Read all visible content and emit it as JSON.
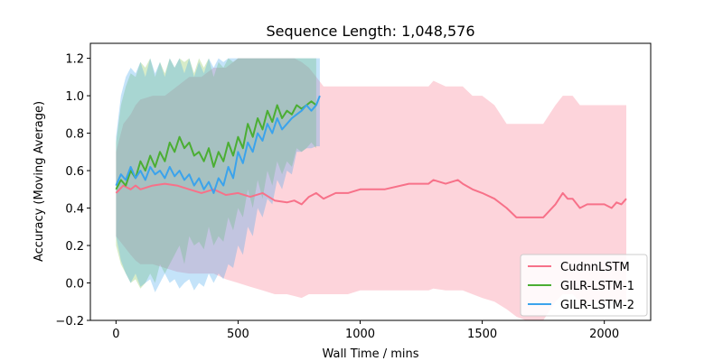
{
  "chart_data": {
    "type": "line",
    "title": "Sequence Length: 1,048,576",
    "xlabel": "Wall Time / mins",
    "ylabel": "Accuracy (Moving Average)",
    "xlim": [
      -105,
      2190
    ],
    "ylim": [
      -0.2,
      1.28
    ],
    "xticks": [
      0,
      500,
      1000,
      1500,
      2000
    ],
    "yticks": [
      -0.2,
      0.0,
      0.2,
      0.4,
      0.6,
      0.8,
      1.0,
      1.2
    ],
    "ytick_labels": [
      "−0.2",
      "0.0",
      "0.2",
      "0.4",
      "0.6",
      "0.8",
      "1.0",
      "1.2"
    ],
    "grid": false,
    "legend_position": "lower-right",
    "series": [
      {
        "name": "CudnnLSTM",
        "color": "#f77189",
        "band_color": "#f77189",
        "x": [
          0,
          30,
          60,
          80,
          100,
          150,
          200,
          250,
          300,
          350,
          400,
          450,
          500,
          550,
          600,
          650,
          700,
          730,
          760,
          790,
          820,
          850,
          900,
          950,
          1000,
          1100,
          1200,
          1280,
          1300,
          1350,
          1400,
          1420,
          1460,
          1500,
          1550,
          1600,
          1640,
          1680,
          1700,
          1750,
          1800,
          1830,
          1850,
          1870,
          1900,
          1930,
          1950,
          2000,
          2030,
          2050,
          2070,
          2090
        ],
        "y": [
          0.48,
          0.52,
          0.5,
          0.52,
          0.5,
          0.52,
          0.53,
          0.52,
          0.5,
          0.48,
          0.5,
          0.47,
          0.48,
          0.46,
          0.48,
          0.44,
          0.43,
          0.44,
          0.42,
          0.46,
          0.48,
          0.45,
          0.48,
          0.48,
          0.5,
          0.5,
          0.53,
          0.53,
          0.55,
          0.53,
          0.55,
          0.53,
          0.5,
          0.48,
          0.45,
          0.4,
          0.35,
          0.35,
          0.35,
          0.35,
          0.42,
          0.48,
          0.45,
          0.45,
          0.4,
          0.42,
          0.42,
          0.42,
          0.4,
          0.43,
          0.42,
          0.45
        ],
        "upper": [
          0.7,
          0.85,
          0.9,
          0.95,
          0.98,
          1.0,
          1.0,
          1.05,
          1.1,
          1.1,
          1.15,
          1.15,
          1.2,
          1.2,
          1.2,
          1.2,
          1.2,
          1.2,
          1.18,
          1.15,
          1.1,
          1.05,
          1.05,
          1.05,
          1.05,
          1.05,
          1.05,
          1.05,
          1.08,
          1.05,
          1.05,
          1.05,
          1.0,
          1.0,
          0.95,
          0.85,
          0.85,
          0.85,
          0.85,
          0.85,
          0.95,
          1.0,
          1.0,
          1.0,
          0.95,
          0.95,
          0.95,
          0.95,
          0.95,
          0.95,
          0.95,
          0.95
        ],
        "lower": [
          0.25,
          0.2,
          0.15,
          0.12,
          0.1,
          0.1,
          0.08,
          0.06,
          0.05,
          0.05,
          0.05,
          0.02,
          0.0,
          -0.02,
          -0.04,
          -0.06,
          -0.06,
          -0.07,
          -0.08,
          -0.06,
          -0.06,
          -0.06,
          -0.06,
          -0.06,
          -0.04,
          -0.04,
          -0.04,
          -0.04,
          -0.03,
          -0.04,
          -0.04,
          -0.04,
          -0.06,
          -0.08,
          -0.1,
          -0.14,
          -0.18,
          -0.2,
          -0.2,
          -0.2,
          -0.1,
          -0.06,
          -0.06,
          -0.06,
          -0.1,
          -0.1,
          -0.1,
          -0.1,
          -0.1,
          -0.1,
          -0.1,
          -0.1
        ]
      },
      {
        "name": "GILR-LSTM-1",
        "color": "#4bae33",
        "band_color": "#7bbf4a",
        "x": [
          0,
          20,
          40,
          60,
          80,
          100,
          120,
          140,
          160,
          180,
          200,
          220,
          240,
          260,
          280,
          300,
          320,
          340,
          360,
          380,
          400,
          420,
          440,
          460,
          480,
          500,
          520,
          540,
          560,
          580,
          600,
          620,
          640,
          660,
          680,
          700,
          720,
          740,
          760,
          780,
          800,
          820
        ],
        "y": [
          0.5,
          0.55,
          0.52,
          0.6,
          0.56,
          0.65,
          0.6,
          0.68,
          0.62,
          0.7,
          0.65,
          0.75,
          0.7,
          0.78,
          0.72,
          0.75,
          0.68,
          0.7,
          0.65,
          0.72,
          0.62,
          0.7,
          0.65,
          0.75,
          0.68,
          0.78,
          0.72,
          0.85,
          0.78,
          0.88,
          0.82,
          0.92,
          0.86,
          0.95,
          0.88,
          0.92,
          0.9,
          0.95,
          0.93,
          0.95,
          0.97,
          0.95
        ],
        "upper": [
          0.75,
          0.95,
          1.05,
          1.12,
          1.1,
          1.18,
          1.15,
          1.2,
          1.1,
          1.18,
          1.12,
          1.2,
          1.15,
          1.2,
          1.18,
          1.2,
          1.12,
          1.2,
          1.15,
          1.2,
          1.1,
          1.18,
          1.15,
          1.2,
          1.18,
          1.2,
          1.2,
          1.2,
          1.2,
          1.2,
          1.2,
          1.2,
          1.2,
          1.2,
          1.2,
          1.2,
          1.2,
          1.2,
          1.2,
          1.2,
          1.2,
          1.2
        ],
        "lower": [
          0.2,
          0.1,
          0.05,
          0.0,
          0.02,
          -0.03,
          0.0,
          0.05,
          0.0,
          0.1,
          0.05,
          0.1,
          0.15,
          0.2,
          0.1,
          0.25,
          0.2,
          0.22,
          0.18,
          0.3,
          0.2,
          0.25,
          0.22,
          0.35,
          0.28,
          0.4,
          0.35,
          0.5,
          0.4,
          0.55,
          0.45,
          0.6,
          0.52,
          0.65,
          0.58,
          0.65,
          0.62,
          0.72,
          0.7,
          0.72,
          0.75,
          0.72
        ]
      },
      {
        "name": "GILR-LSTM-2",
        "color": "#3ba3ec",
        "band_color": "#3ba3ec",
        "x": [
          0,
          20,
          40,
          60,
          80,
          100,
          120,
          140,
          160,
          180,
          200,
          220,
          240,
          260,
          280,
          300,
          320,
          340,
          360,
          380,
          400,
          420,
          440,
          460,
          480,
          500,
          520,
          540,
          560,
          580,
          600,
          620,
          640,
          660,
          680,
          700,
          720,
          740,
          760,
          780,
          800,
          820,
          835
        ],
        "y": [
          0.52,
          0.58,
          0.55,
          0.62,
          0.56,
          0.6,
          0.55,
          0.62,
          0.58,
          0.6,
          0.56,
          0.62,
          0.57,
          0.6,
          0.55,
          0.58,
          0.52,
          0.56,
          0.5,
          0.54,
          0.48,
          0.56,
          0.52,
          0.62,
          0.56,
          0.7,
          0.64,
          0.75,
          0.7,
          0.8,
          0.76,
          0.85,
          0.8,
          0.88,
          0.82,
          0.85,
          0.88,
          0.9,
          0.92,
          0.95,
          0.92,
          0.95,
          1.0
        ],
        "upper": [
          0.78,
          1.0,
          1.1,
          1.15,
          1.12,
          1.18,
          1.1,
          1.2,
          1.12,
          1.18,
          1.1,
          1.2,
          1.15,
          1.2,
          1.12,
          1.2,
          1.1,
          1.18,
          1.12,
          1.2,
          1.15,
          1.2,
          1.18,
          1.2,
          1.2,
          1.2,
          1.2,
          1.2,
          1.2,
          1.2,
          1.2,
          1.2,
          1.2,
          1.2,
          1.2,
          1.2,
          1.2,
          1.2,
          1.2,
          1.2,
          1.2,
          1.2,
          1.2
        ],
        "lower": [
          0.25,
          0.12,
          0.05,
          0.0,
          0.05,
          -0.02,
          0.0,
          0.02,
          -0.05,
          0.0,
          0.05,
          0.0,
          0.02,
          -0.03,
          0.0,
          0.02,
          -0.04,
          0.0,
          -0.02,
          0.05,
          0.0,
          0.05,
          0.02,
          0.1,
          0.08,
          0.2,
          0.15,
          0.3,
          0.25,
          0.4,
          0.35,
          0.45,
          0.42,
          0.55,
          0.5,
          0.6,
          0.58,
          0.7,
          0.7,
          0.72,
          0.72,
          0.73,
          0.73
        ]
      }
    ]
  }
}
